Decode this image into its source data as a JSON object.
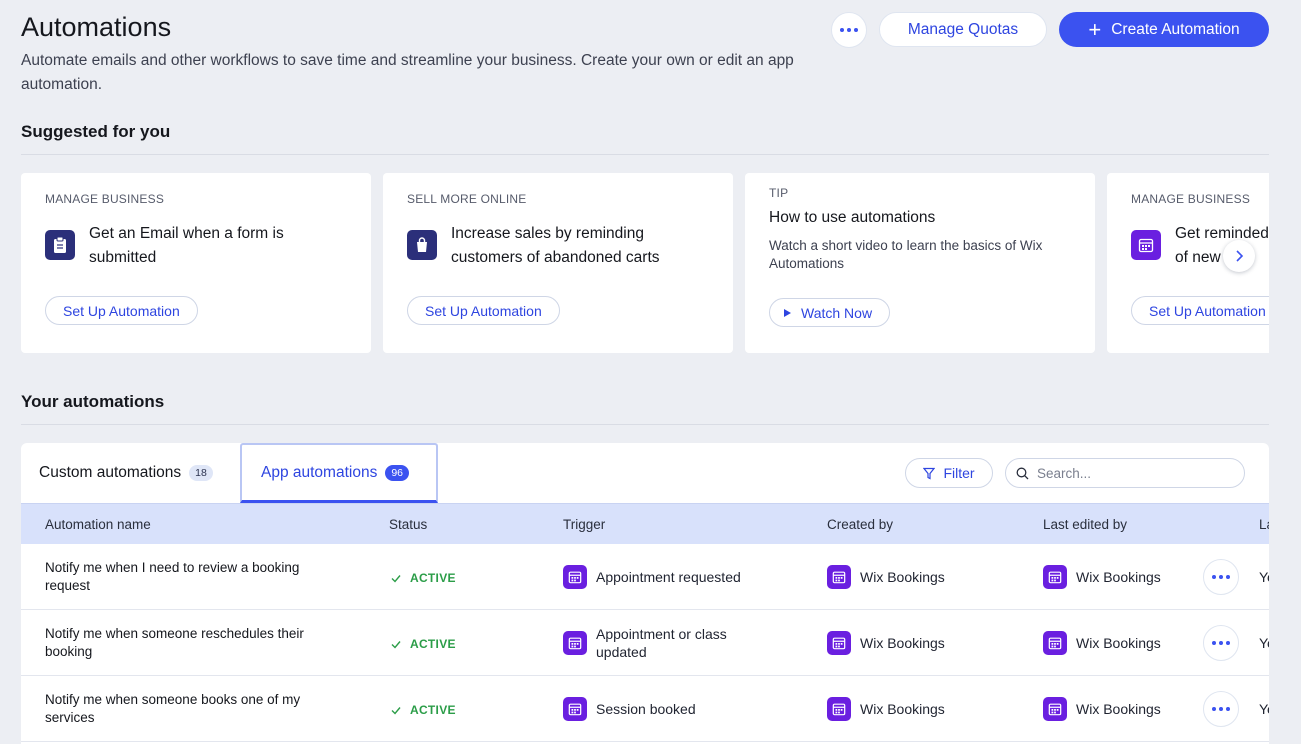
{
  "header": {
    "title": "Automations",
    "description": "Automate emails and other workflows to save time and streamline your business. Create your own or edit an app automation.",
    "manage_quotas_label": "Manage Quotas",
    "create_label": "Create Automation"
  },
  "suggested": {
    "title": "Suggested for you",
    "cards": [
      {
        "category": "MANAGE BUSINESS",
        "heading": "Get an Email when a form is submitted",
        "action": "Set Up Automation",
        "icon": "clipboard-icon"
      },
      {
        "category": "SELL MORE ONLINE",
        "heading": "Increase sales by reminding customers of abandoned carts",
        "action": "Set Up Automation",
        "icon": "shopping-bag-icon"
      },
      {
        "category": "TIP",
        "heading": "How to use automations",
        "description": "Watch a short video to learn the basics of Wix Automations",
        "action": "Watch Now",
        "icon": "play-icon"
      },
      {
        "category": "MANAGE BUSINESS",
        "heading": "Get reminded of new cl",
        "action": "Set Up Automation",
        "icon": "calendar-icon"
      }
    ]
  },
  "your_automations": {
    "title": "Your automations",
    "tabs": [
      {
        "label": "Custom automations",
        "count": "18"
      },
      {
        "label": "App automations",
        "count": "96"
      }
    ],
    "filter_label": "Filter",
    "search_placeholder": "Search...",
    "columns": [
      "Automation name",
      "Status",
      "Trigger",
      "Created by",
      "Last edited by",
      "La"
    ],
    "rows": [
      {
        "name": "Notify me when I need to review a booking request",
        "status": "ACTIVE",
        "trigger": "Appointment requested",
        "created_by": "Wix Bookings",
        "last_edited_by": "Wix Bookings",
        "last_col": "Ye"
      },
      {
        "name": "Notify me when someone reschedules their booking",
        "status": "ACTIVE",
        "trigger": "Appointment or class updated",
        "created_by": "Wix Bookings",
        "last_edited_by": "Wix Bookings",
        "last_col": "Ye"
      },
      {
        "name": "Notify me when someone books one of my services",
        "status": "ACTIVE",
        "trigger": "Session booked",
        "created_by": "Wix Bookings",
        "last_edited_by": "Wix Bookings",
        "last_col": "Ye"
      }
    ]
  },
  "colors": {
    "accent": "#3b52f0",
    "active_status": "#2b9d48",
    "app_icon": "#6a1fe0",
    "header_row": "#d8e1fb"
  }
}
